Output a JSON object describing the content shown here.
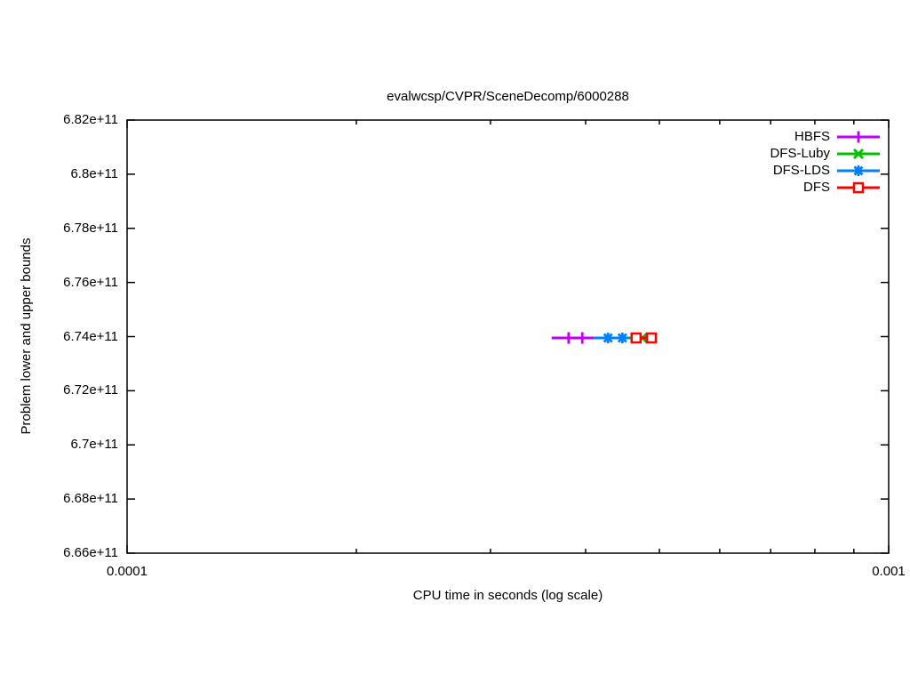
{
  "title": "evalwcsp/CVPR/SceneDecomp/6000288",
  "colors": {
    "background": "#ffffff",
    "axis": "#000000",
    "hbfs": "#bf00ff",
    "dfs_luby": "#00c000",
    "dfs_lds": "#0080ff",
    "dfs": "#ff0000"
  },
  "chart_data": {
    "type": "line",
    "title": "evalwcsp/CVPR/SceneDecomp/6000288",
    "xlabel": "CPU time in seconds (log scale)",
    "ylabel": "Problem lower and upper bounds",
    "x_scale": "log",
    "grid": false,
    "xlim": [
      0.0001,
      0.001
    ],
    "ylim": [
      666000000000,
      682000000000
    ],
    "x_ticks": [
      {
        "value": 0.0001,
        "label": "0.0001"
      },
      {
        "value": 0.001,
        "label": "0.001"
      }
    ],
    "x_minor_ticks": [
      0.0002,
      0.0003,
      0.0004,
      0.0005,
      0.0006,
      0.0007,
      0.0008,
      0.0009
    ],
    "y_ticks": [
      {
        "value": 666000000000,
        "label": "6.66e+11"
      },
      {
        "value": 668000000000,
        "label": "6.68e+11"
      },
      {
        "value": 670000000000,
        "label": "6.7e+11"
      },
      {
        "value": 672000000000,
        "label": "6.72e+11"
      },
      {
        "value": 674000000000,
        "label": "6.74e+11"
      },
      {
        "value": 676000000000,
        "label": "6.76e+11"
      },
      {
        "value": 678000000000,
        "label": "6.78e+11"
      },
      {
        "value": 680000000000,
        "label": "6.8e+11"
      },
      {
        "value": 682000000000,
        "label": "6.82e+11"
      }
    ],
    "legend_position": "top-right",
    "series": [
      {
        "name": "HBFS",
        "color": "#bf00ff",
        "marker": "plus",
        "y": 673950000000,
        "line_x": [
          0.000361,
          0.00041
        ],
        "marker_x": [
          0.00038,
          0.000396
        ]
      },
      {
        "name": "DFS-Luby",
        "color": "#00c000",
        "marker": "x",
        "y": 673950000000,
        "line_x": [
          0.000455,
          0.000488
        ],
        "marker_x": [
          0.000465,
          0.000475,
          0.000488
        ]
      },
      {
        "name": "DFS-LDS",
        "color": "#0080ff",
        "marker": "asterisk",
        "y": 673950000000,
        "line_x": [
          0.00041,
          0.000455
        ],
        "marker_x": [
          0.000428,
          0.000447
        ]
      },
      {
        "name": "DFS",
        "color": "#ff0000",
        "marker": "open-square",
        "y": 673950000000,
        "line_x": [
          0.00046,
          0.000495
        ],
        "marker_x": [
          0.000466,
          0.000488
        ]
      }
    ]
  }
}
